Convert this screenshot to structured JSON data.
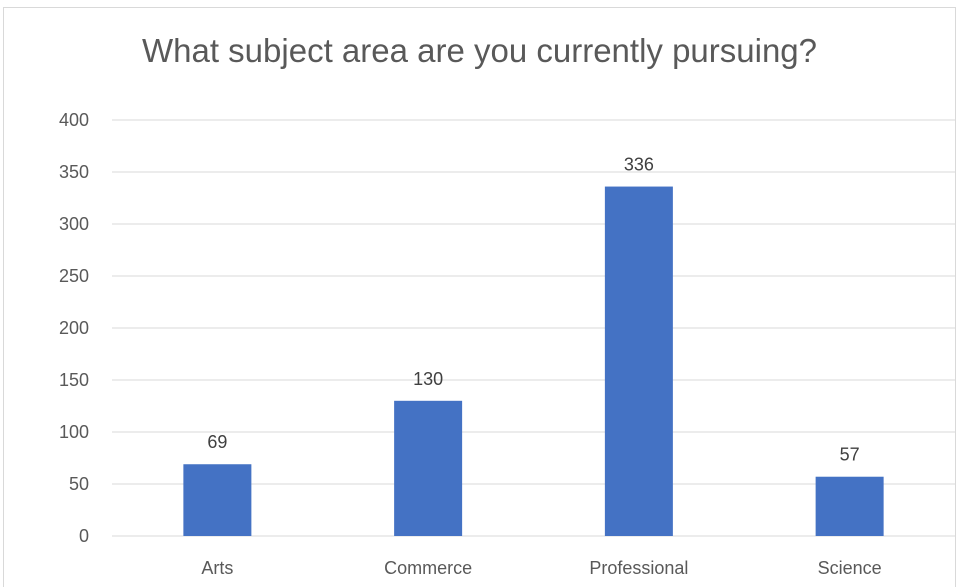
{
  "chart_data": {
    "type": "bar",
    "title": "What subject area are you currently pursuing?",
    "categories": [
      "Arts",
      "Commerce",
      "Professional",
      "Science"
    ],
    "values": [
      69,
      130,
      336,
      57
    ],
    "data_labels": [
      "69",
      "130",
      "336",
      "57"
    ],
    "y_ticks": [
      "0",
      "50",
      "100",
      "150",
      "200",
      "250",
      "300",
      "350",
      "400"
    ],
    "ylim": [
      0,
      400
    ],
    "xlabel": "",
    "ylabel": "",
    "grid": true,
    "legend": "none",
    "bar_color": "#4472C4",
    "grid_color": "#d9d9d9"
  }
}
